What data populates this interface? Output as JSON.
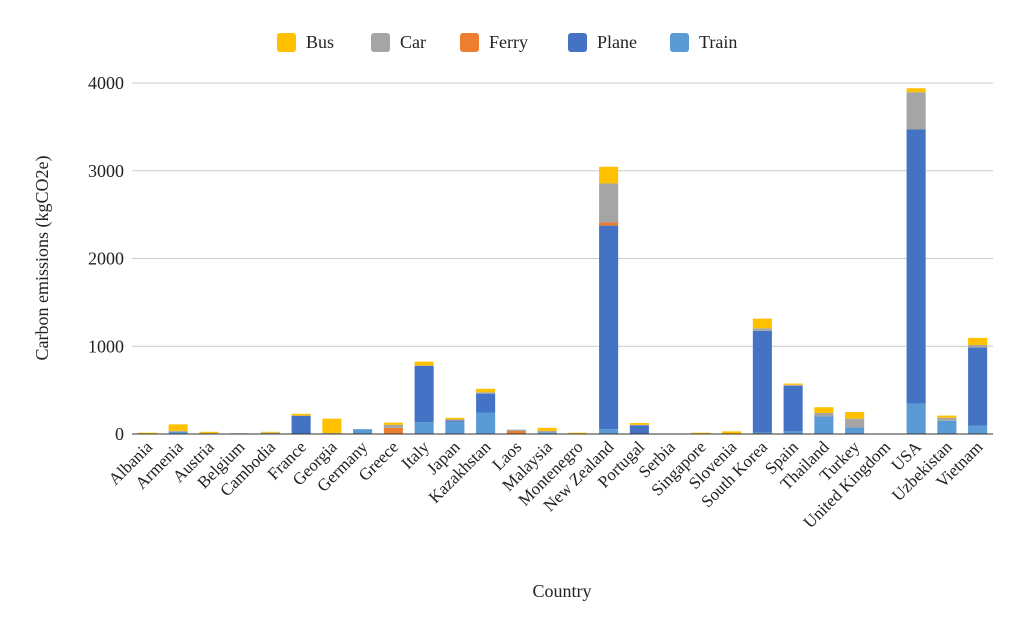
{
  "chart_data": {
    "type": "bar",
    "stacked": true,
    "title": "",
    "xlabel": "Country",
    "ylabel": "Carbon emissions (kgCO2e)",
    "ylim": [
      0,
      4000
    ],
    "yticks": [
      0,
      1000,
      2000,
      3000,
      4000
    ],
    "grid": true,
    "legend_position": "top",
    "categories": [
      "Albania",
      "Armenia",
      "Austria",
      "Belgium",
      "Cambodia",
      "France",
      "Georgia",
      "Germany",
      "Greece",
      "Italy",
      "Japan",
      "Kazakhstan",
      "Laos",
      "Malaysia",
      "Montenegro",
      "New Zealand",
      "Portugal",
      "Serbia",
      "Singapore",
      "Slovenia",
      "South Korea",
      "Spain",
      "Thailand",
      "Turkey",
      "United Kingdom",
      "USA",
      "Uzbekistan",
      "Vietnam"
    ],
    "series": [
      {
        "name": "Train",
        "color": "#5b9bd5",
        "values": [
          0,
          25,
          5,
          8,
          5,
          5,
          0,
          55,
          0,
          135,
          140,
          245,
          0,
          20,
          0,
          55,
          0,
          5,
          0,
          0,
          15,
          30,
          200,
          75,
          0,
          345,
          150,
          95
        ]
      },
      {
        "name": "Plane",
        "color": "#4472c4",
        "values": [
          0,
          0,
          0,
          0,
          0,
          200,
          0,
          0,
          0,
          640,
          15,
          215,
          0,
          0,
          0,
          2320,
          100,
          0,
          0,
          0,
          1160,
          520,
          0,
          0,
          0,
          3125,
          0,
          890
        ]
      },
      {
        "name": "Ferry",
        "color": "#ed7d31",
        "values": [
          0,
          0,
          0,
          0,
          0,
          0,
          0,
          0,
          70,
          0,
          0,
          0,
          35,
          0,
          0,
          35,
          0,
          0,
          0,
          0,
          0,
          0,
          0,
          0,
          0,
          0,
          0,
          0
        ]
      },
      {
        "name": "Car",
        "color": "#a5a5a5",
        "values": [
          0,
          10,
          5,
          0,
          10,
          5,
          10,
          0,
          35,
          5,
          10,
          15,
          15,
          15,
          0,
          445,
          5,
          0,
          0,
          0,
          30,
          10,
          40,
          100,
          0,
          425,
          35,
          30
        ]
      },
      {
        "name": "Bus",
        "color": "#ffc000",
        "values": [
          15,
          75,
          15,
          0,
          10,
          20,
          165,
          0,
          25,
          45,
          20,
          40,
          0,
          35,
          15,
          190,
          20,
          0,
          15,
          30,
          110,
          15,
          65,
          75,
          0,
          45,
          25,
          80
        ]
      }
    ]
  }
}
